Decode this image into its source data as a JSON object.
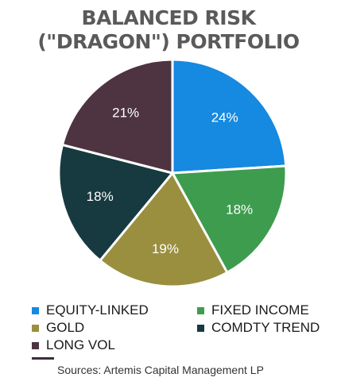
{
  "title_line1": "BALANCED RISK",
  "title_line2": "(\"DRAGON\") PORTFOLIO",
  "source": "Sources: Artemis Capital Management LP",
  "rule_color": "#3a2e3a",
  "chart_data": {
    "type": "pie",
    "title": "BALANCED RISK (\"DRAGON\") PORTFOLIO",
    "unit": "%",
    "legend_position": "bottom",
    "slices": [
      {
        "label": "EQUITY-LINKED",
        "value": 24,
        "display": "24%",
        "color": "#1689e0"
      },
      {
        "label": "FIXED INCOME",
        "value": 18,
        "display": "18%",
        "color": "#3e9c4f"
      },
      {
        "label": "GOLD",
        "value": 19,
        "display": "19%",
        "color": "#998f3f"
      },
      {
        "label": "COMDTY TREND",
        "value": 18,
        "display": "18%",
        "color": "#163a3f"
      },
      {
        "label": "LONG VOL",
        "value": 21,
        "display": "21%",
        "color": "#4d3440"
      }
    ]
  }
}
